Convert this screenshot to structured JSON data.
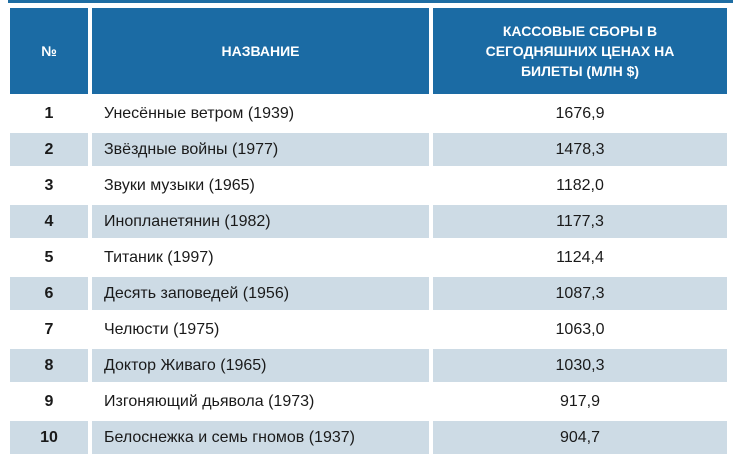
{
  "chart_data": {
    "type": "table",
    "columns": [
      "№",
      "НАЗВАНИЕ",
      "КАССОВЫЕ СБОРЫ В СЕГОДНЯШНИХ ЦЕНАХ НА БИЛЕТЫ (МЛН $)"
    ],
    "rows": [
      [
        1,
        "Унесённые ветром (1939)",
        1676.9
      ],
      [
        2,
        "Звёздные войны (1977)",
        1478.3
      ],
      [
        3,
        "Звуки музыки (1965)",
        1182.0
      ],
      [
        4,
        "Инопланетянин (1982)",
        1177.3
      ],
      [
        5,
        "Титаник (1997)",
        1124.4
      ],
      [
        6,
        "Десять заповедей (1956)",
        1087.3
      ],
      [
        7,
        "Челюсти (1975)",
        1063.0
      ],
      [
        8,
        "Доктор Живаго (1965)",
        1030.3
      ],
      [
        9,
        "Изгоняющий дьявола (1973)",
        917.9
      ],
      [
        10,
        "Белоснежка и семь гномов (1937)",
        904.7
      ]
    ],
    "legend_position": "none",
    "grid": false
  },
  "table": {
    "headers": {
      "number": "№",
      "name": "НАЗВАНИЕ",
      "gross": "КАССОВЫЕ СБОРЫ В СЕГОДНЯШНИХ ЦЕНАХ НА БИЛЕТЫ (МЛН $)"
    },
    "rows": [
      {
        "rank": "1",
        "title": "Унесённые ветром (1939)",
        "value": "1676,9"
      },
      {
        "rank": "2",
        "title": "Звёздные войны (1977)",
        "value": "1478,3"
      },
      {
        "rank": "3",
        "title": "Звуки музыки (1965)",
        "value": "1182,0"
      },
      {
        "rank": "4",
        "title": "Инопланетянин (1982)",
        "value": "1177,3"
      },
      {
        "rank": "5",
        "title": "Титаник (1997)",
        "value": "1124,4"
      },
      {
        "rank": "6",
        "title": "Десять заповедей (1956)",
        "value": "1087,3"
      },
      {
        "rank": "7",
        "title": "Челюсти (1975)",
        "value": "1063,0"
      },
      {
        "rank": "8",
        "title": "Доктор Живаго (1965)",
        "value": "1030,3"
      },
      {
        "rank": "9",
        "title": "Изгоняющий дьявола (1973)",
        "value": "917,9"
      },
      {
        "rank": "10",
        "title": "Белоснежка и семь гномов (1937)",
        "value": "904,7"
      }
    ]
  },
  "colors": {
    "header_bg": "#1b6ba4",
    "header_text": "#ffffff",
    "stripe_bg": "#cddbe5",
    "row_bg": "#ffffff",
    "body_text": "#1a1a1a",
    "top_rule": "#1e6da3"
  }
}
